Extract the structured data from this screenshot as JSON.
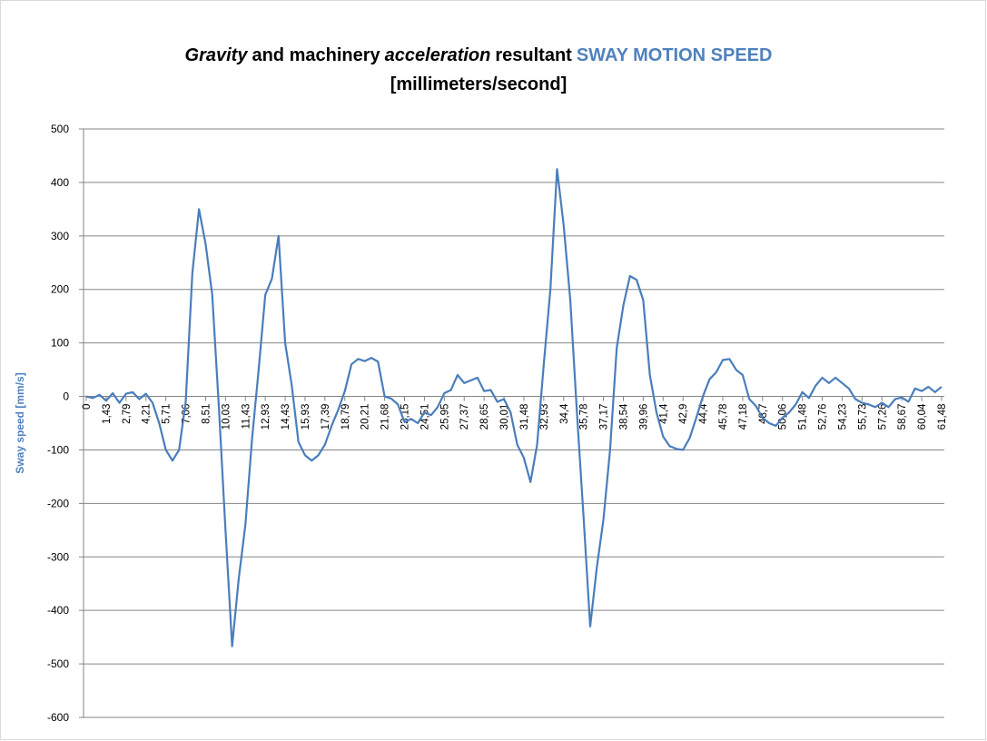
{
  "chart_data": {
    "type": "line",
    "title_runs": [
      {
        "text": "Gravity",
        "italic": true
      },
      {
        "text": "and machinery"
      },
      {
        "text": "acceleration",
        "italic": true
      },
      {
        "text": "resultant"
      },
      {
        "text": "SWAY MOTION SPEED",
        "color": "#4f81bd"
      }
    ],
    "subtitle": "[millimeters/second]",
    "y_label": "Sway speed [mm/s]",
    "y_label_color": "#4f81bd",
    "color": "#4a7ebb",
    "grid": true,
    "ylim": [
      -600,
      500
    ],
    "yticks": [
      -600,
      -500,
      -400,
      -300,
      -200,
      -100,
      0,
      100,
      200,
      300,
      400,
      500
    ],
    "categories": [
      "0",
      null,
      null,
      "1,43",
      null,
      null,
      "2,79",
      null,
      null,
      "4,21",
      null,
      null,
      "5,71",
      null,
      null,
      "7,06",
      null,
      null,
      "8,51",
      null,
      null,
      "10,03",
      null,
      null,
      "11,43",
      null,
      null,
      "12,93",
      null,
      null,
      "14,43",
      null,
      null,
      "15,93",
      null,
      null,
      "17,39",
      null,
      null,
      "18,79",
      null,
      null,
      "20,21",
      null,
      null,
      "21,68",
      null,
      null,
      "23,15",
      null,
      null,
      "24,51",
      null,
      null,
      "25,95",
      null,
      null,
      "27,37",
      null,
      null,
      "28,65",
      null,
      null,
      "30,01",
      null,
      null,
      "31,48",
      null,
      null,
      "32,93",
      null,
      null,
      "34,4",
      null,
      null,
      "35,78",
      null,
      null,
      "37,17",
      null,
      null,
      "38,54",
      null,
      null,
      "39,96",
      null,
      null,
      "41,4",
      null,
      null,
      "42,9",
      null,
      null,
      "44,4",
      null,
      null,
      "45,78",
      null,
      null,
      "47,18",
      null,
      null,
      "48,7",
      null,
      null,
      "50,06",
      null,
      null,
      "51,48",
      null,
      null,
      "52,76",
      null,
      null,
      "54,23",
      null,
      null,
      "55,73",
      null,
      null,
      "57,26",
      null,
      null,
      "58,67",
      null,
      null,
      "60,04",
      null,
      null,
      "61,48"
    ],
    "values": [
      0,
      -3,
      3,
      -8,
      6,
      -12,
      5,
      8,
      -5,
      5,
      -12,
      -50,
      -100,
      -120,
      -100,
      -10,
      230,
      350,
      285,
      190,
      -20,
      -250,
      -467,
      -340,
      -240,
      -80,
      50,
      190,
      220,
      300,
      100,
      20,
      -85,
      -110,
      -120,
      -110,
      -90,
      -55,
      -25,
      10,
      60,
      70,
      66,
      72,
      65,
      0,
      -4,
      -15,
      -48,
      -42,
      -50,
      -30,
      -35,
      -20,
      6,
      12,
      40,
      25,
      30,
      35,
      10,
      12,
      -10,
      -5,
      -30,
      -90,
      -115,
      -160,
      -90,
      60,
      200,
      425,
      320,
      180,
      -30,
      -225,
      -430,
      -320,
      -230,
      -100,
      90,
      170,
      225,
      218,
      180,
      40,
      -30,
      -75,
      -93,
      -98,
      -100,
      -78,
      -40,
      0,
      32,
      45,
      68,
      70,
      50,
      40,
      -5,
      -18,
      -40,
      -50,
      -55,
      -40,
      -30,
      -15,
      8,
      -3,
      20,
      35,
      25,
      35,
      25,
      15,
      -5,
      -12,
      -15,
      -20,
      -12,
      -20,
      -5,
      -2,
      -10,
      15,
      10,
      18,
      8,
      18
    ]
  }
}
